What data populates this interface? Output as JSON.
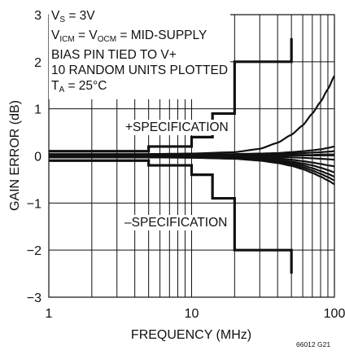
{
  "chart_data": {
    "type": "line",
    "xlabel": "FREQUENCY (MHz)",
    "ylabel": "GAIN ERROR (dB)",
    "xscale": "log",
    "xlim": [
      1,
      100
    ],
    "ylim": [
      -3,
      3
    ],
    "x_ticks": [
      "1",
      "10",
      "100"
    ],
    "y_ticks": [
      "3",
      "2",
      "1",
      "0",
      "−1",
      "−2",
      "−3"
    ],
    "grid": true,
    "annotations": {
      "conditions": [
        {
          "main": "V",
          "sub": "S",
          "rest": " = 3V"
        },
        {
          "main": "V",
          "sub": "ICM",
          "rest": " = V",
          "sub2": "OCM",
          "rest2": " = MID-SUPPLY"
        },
        {
          "main": "BIAS PIN TIED TO V+"
        },
        {
          "main": "10 RANDOM UNITS PLOTTED"
        },
        {
          "main": "T",
          "sub": "A",
          "rest": " = 25°C"
        }
      ],
      "plus_spec": "+SPECIFICATION",
      "minus_spec": "–SPECIFICATION"
    },
    "spec_limits": {
      "upper": {
        "x": [
          1,
          5,
          5,
          10,
          10,
          14,
          14,
          20,
          20,
          50,
          50
        ],
        "y": [
          0.1,
          0.1,
          0.2,
          0.2,
          0.4,
          0.4,
          0.9,
          0.9,
          2.0,
          2.0,
          2.5
        ]
      },
      "lower": {
        "x": [
          1,
          5,
          5,
          10,
          10,
          14,
          14,
          20,
          20,
          50,
          50
        ],
        "y": [
          -0.1,
          -0.1,
          -0.2,
          -0.2,
          -0.4,
          -0.4,
          -0.9,
          -0.9,
          -2.0,
          -2.0,
          -2.5
        ]
      }
    },
    "x": [
      1,
      2,
      5,
      10,
      20,
      30,
      40,
      50,
      60,
      70,
      80,
      90,
      100
    ],
    "series": [
      {
        "values": [
          0.04,
          0.04,
          0.04,
          0.05,
          0.08,
          0.15,
          0.28,
          0.45,
          0.65,
          0.9,
          1.15,
          1.42,
          1.7
        ]
      },
      {
        "values": [
          0.03,
          0.03,
          0.03,
          0.03,
          0.04,
          0.05,
          0.06,
          0.08,
          0.1,
          0.12,
          0.14,
          0.17,
          0.2
        ]
      },
      {
        "values": [
          0.02,
          0.02,
          0.02,
          0.02,
          0.03,
          0.03,
          0.04,
          0.05,
          0.06,
          0.07,
          0.08,
          0.09,
          0.1
        ]
      },
      {
        "values": [
          0.01,
          0.01,
          0.01,
          0.01,
          0.01,
          0.01,
          0.02,
          0.02,
          0.02,
          0.02,
          0.03,
          0.03,
          0.03
        ]
      },
      {
        "values": [
          0.0,
          0.0,
          0.0,
          0.0,
          0.0,
          -0.01,
          -0.02,
          -0.03,
          -0.04,
          -0.05,
          -0.06,
          -0.07,
          -0.08
        ]
      },
      {
        "values": [
          -0.01,
          -0.01,
          -0.01,
          -0.01,
          -0.02,
          -0.03,
          -0.05,
          -0.08,
          -0.11,
          -0.14,
          -0.17,
          -0.2,
          -0.22
        ]
      },
      {
        "values": [
          -0.02,
          -0.02,
          -0.02,
          -0.02,
          -0.03,
          -0.05,
          -0.08,
          -0.12,
          -0.16,
          -0.2,
          -0.25,
          -0.3,
          -0.35
        ]
      },
      {
        "values": [
          -0.02,
          -0.02,
          -0.02,
          -0.03,
          -0.04,
          -0.06,
          -0.1,
          -0.15,
          -0.2,
          -0.26,
          -0.32,
          -0.38,
          -0.44
        ]
      },
      {
        "values": [
          -0.03,
          -0.03,
          -0.03,
          -0.03,
          -0.05,
          -0.08,
          -0.12,
          -0.18,
          -0.24,
          -0.31,
          -0.38,
          -0.45,
          -0.52
        ]
      },
      {
        "values": [
          -0.03,
          -0.03,
          -0.03,
          -0.04,
          -0.06,
          -0.1,
          -0.15,
          -0.21,
          -0.28,
          -0.36,
          -0.44,
          -0.52,
          -0.6
        ]
      }
    ]
  },
  "figure_id": "66012 G21"
}
